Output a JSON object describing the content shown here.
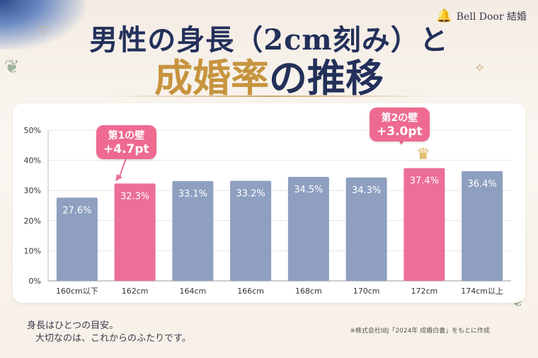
{
  "brand": {
    "name": "Bell Door 結婚"
  },
  "title": {
    "line1": "男性の身長（2cm刻み）と",
    "line2_accent": "成婚率",
    "line2_rest": "の推移"
  },
  "chart_data": {
    "type": "bar",
    "categories": [
      "160cm以下",
      "162cm",
      "164cm",
      "166cm",
      "168cm",
      "170cm",
      "172cm",
      "174cm以上"
    ],
    "values": [
      27.6,
      32.3,
      33.1,
      33.2,
      34.5,
      34.3,
      37.4,
      36.4
    ],
    "value_labels": [
      "27.6%",
      "32.3%",
      "33.1%",
      "33.2%",
      "34.5%",
      "34.3%",
      "37.4%",
      "36.4%"
    ],
    "highlighted": [
      1,
      6
    ],
    "ylim": [
      0,
      50
    ],
    "yticks": [
      "0%",
      "10%",
      "20%",
      "30%",
      "40%",
      "50%"
    ],
    "grid": true,
    "colors": {
      "bar": "#8e9fc0",
      "highlight": "#ec6f99",
      "axis_text": "#333333"
    }
  },
  "callouts": [
    {
      "line1": "第1の壁",
      "line2": "+4.7pt"
    },
    {
      "line1": "第2の壁",
      "line2": "+3.0pt"
    }
  ],
  "footer": {
    "note_line1": "身長はひとつの目安。",
    "note_line2": "大切なのは、これからのふたりです。",
    "source": "※株式会社IBJ「2024年 成婚白書」をもとに作成"
  }
}
